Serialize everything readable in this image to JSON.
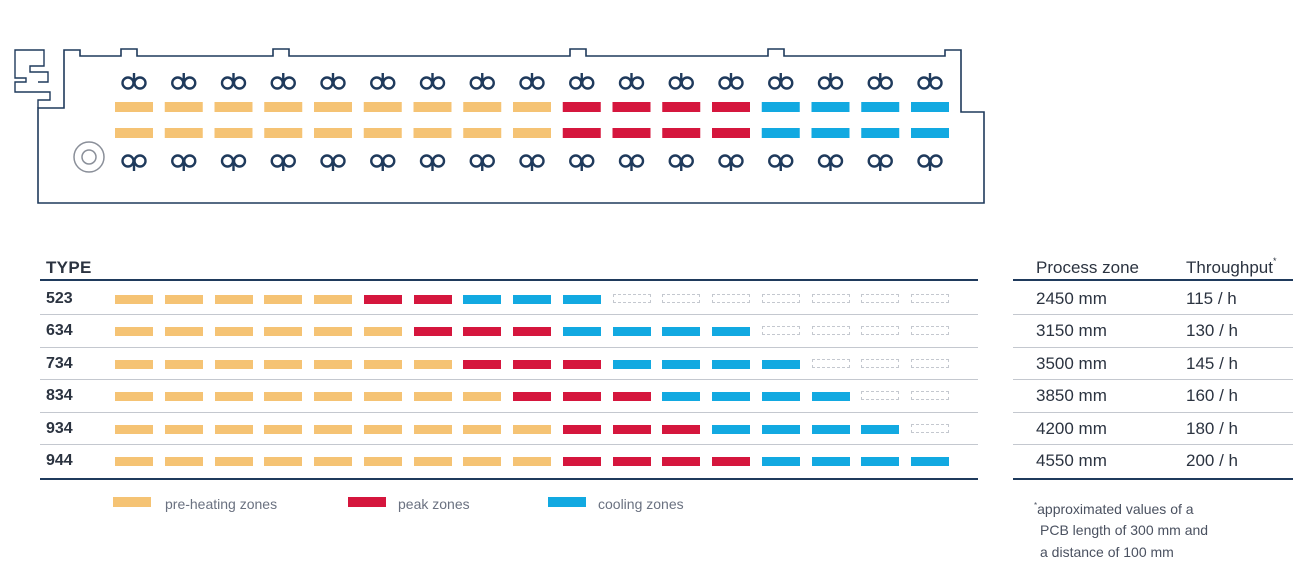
{
  "colors": {
    "preheat": "#f5c374",
    "peak": "#d5163d",
    "cooling": "#12a9e1",
    "outline": "#1f3a5c",
    "fan": "#1f3a5c"
  },
  "oven": {
    "zones_per_row": 17,
    "zone_kinds": [
      "preheat",
      "preheat",
      "preheat",
      "preheat",
      "preheat",
      "preheat",
      "preheat",
      "preheat",
      "preheat",
      "peak",
      "peak",
      "peak",
      "peak",
      "cooling",
      "cooling",
      "cooling",
      "cooling"
    ],
    "top_fan_icon": "fan-top-icon",
    "bottom_fan_icon": "fan-bottom-icon",
    "conveyor_icon": "conveyor-wheel-icon"
  },
  "table": {
    "type_header": "TYPE",
    "process_zone_header": "Process zone",
    "throughput_header": "Throughput",
    "throughput_mark": "*",
    "total_slots": 17,
    "rows": [
      {
        "type": "523",
        "preheat": 5,
        "peak": 2,
        "cooling": 3,
        "process_zone": "2450 mm",
        "throughput": "115 / h"
      },
      {
        "type": "634",
        "preheat": 6,
        "peak": 3,
        "cooling": 4,
        "process_zone": "3150 mm",
        "throughput": "130 / h"
      },
      {
        "type": "734",
        "preheat": 7,
        "peak": 3,
        "cooling": 4,
        "process_zone": "3500 mm",
        "throughput": "145 / h"
      },
      {
        "type": "834",
        "preheat": 8,
        "peak": 3,
        "cooling": 4,
        "process_zone": "3850 mm",
        "throughput": "160 / h"
      },
      {
        "type": "934",
        "preheat": 9,
        "peak": 3,
        "cooling": 4,
        "process_zone": "4200 mm",
        "throughput": "180 / h"
      },
      {
        "type": "944",
        "preheat": 9,
        "peak": 4,
        "cooling": 4,
        "process_zone": "4550 mm",
        "throughput": "200 / h"
      }
    ]
  },
  "legend": {
    "preheat_label": "pre-heating zones",
    "peak_label": "peak zones",
    "cooling_label": "cooling zones"
  },
  "footnote": {
    "mark": "*",
    "line1": "approximated values of a",
    "line2": "PCB length of 300 mm and",
    "line3": "a distance of 100 mm"
  }
}
